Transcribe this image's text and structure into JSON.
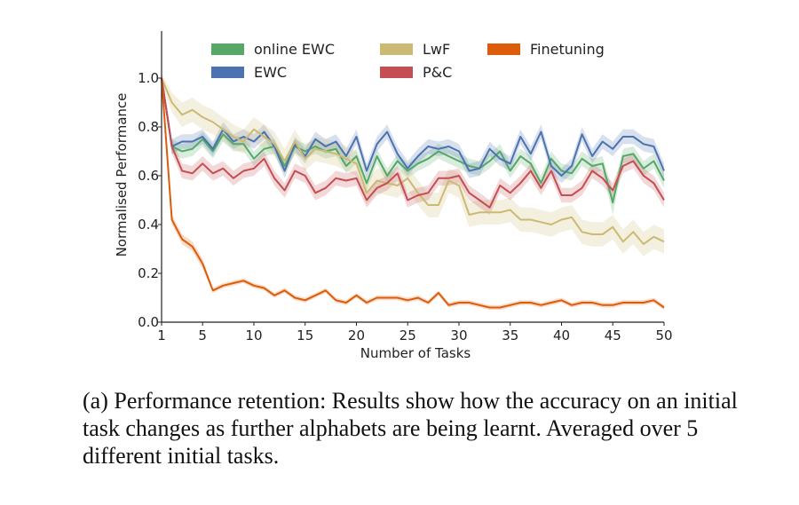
{
  "caption": "(a) Performance retention: Results show how the accuracy on an initial task changes as further alphabets are being learnt. Averaged over 5 different initial tasks.",
  "chart_data": {
    "type": "line",
    "title": "",
    "xlabel": "Number of Tasks",
    "ylabel": "Normalised Performance",
    "xlim": [
      1,
      50
    ],
    "ylim": [
      0.0,
      1.0
    ],
    "xticks": [
      1,
      5,
      10,
      15,
      20,
      25,
      30,
      35,
      40,
      45,
      50
    ],
    "yticks": [
      0.0,
      0.2,
      0.4,
      0.6,
      0.8,
      1.0
    ],
    "ytick_labels": [
      "0.0",
      "0.2",
      "0.4",
      "0.6",
      "0.8",
      "1.0"
    ],
    "grid": false,
    "legend_position": "top",
    "x": [
      1,
      2,
      3,
      4,
      5,
      6,
      7,
      8,
      9,
      10,
      11,
      12,
      13,
      14,
      15,
      16,
      17,
      18,
      19,
      20,
      21,
      22,
      23,
      24,
      25,
      26,
      27,
      28,
      29,
      30,
      31,
      32,
      33,
      34,
      35,
      36,
      37,
      38,
      39,
      40,
      41,
      42,
      43,
      44,
      45,
      46,
      47,
      48,
      49,
      50
    ],
    "series": [
      {
        "name": "online EWC",
        "color": "#55a868",
        "values": [
          1.0,
          0.72,
          0.7,
          0.71,
          0.75,
          0.7,
          0.77,
          0.73,
          0.73,
          0.67,
          0.71,
          0.72,
          0.64,
          0.72,
          0.7,
          0.72,
          0.7,
          0.71,
          0.64,
          0.68,
          0.57,
          0.68,
          0.6,
          0.66,
          0.62,
          0.65,
          0.67,
          0.7,
          0.68,
          0.66,
          0.64,
          0.63,
          0.66,
          0.7,
          0.62,
          0.68,
          0.65,
          0.57,
          0.67,
          0.62,
          0.61,
          0.67,
          0.64,
          0.65,
          0.49,
          0.68,
          0.69,
          0.63,
          0.66,
          0.58
        ],
        "band": [
          0.02,
          0.03,
          0.03,
          0.03,
          0.03,
          0.03,
          0.03,
          0.03,
          0.03,
          0.03,
          0.03,
          0.03,
          0.03,
          0.03,
          0.03,
          0.03,
          0.03,
          0.03,
          0.03,
          0.03,
          0.03,
          0.03,
          0.03,
          0.03,
          0.03,
          0.03,
          0.03,
          0.03,
          0.03,
          0.03,
          0.03,
          0.03,
          0.03,
          0.03,
          0.03,
          0.03,
          0.03,
          0.03,
          0.03,
          0.03,
          0.03,
          0.03,
          0.03,
          0.03,
          0.05,
          0.03,
          0.03,
          0.03,
          0.03,
          0.03
        ]
      },
      {
        "name": "EWC",
        "color": "#4c72b0",
        "values": [
          1.0,
          0.72,
          0.74,
          0.74,
          0.76,
          0.71,
          0.79,
          0.74,
          0.76,
          0.74,
          0.78,
          0.72,
          0.62,
          0.73,
          0.68,
          0.75,
          0.72,
          0.74,
          0.68,
          0.76,
          0.62,
          0.73,
          0.78,
          0.69,
          0.63,
          0.68,
          0.72,
          0.71,
          0.72,
          0.7,
          0.62,
          0.63,
          0.71,
          0.67,
          0.65,
          0.76,
          0.69,
          0.78,
          0.64,
          0.6,
          0.64,
          0.77,
          0.68,
          0.74,
          0.71,
          0.76,
          0.76,
          0.73,
          0.72,
          0.62
        ],
        "band": [
          0.02,
          0.03,
          0.03,
          0.03,
          0.03,
          0.03,
          0.03,
          0.03,
          0.03,
          0.03,
          0.03,
          0.03,
          0.03,
          0.03,
          0.03,
          0.03,
          0.03,
          0.03,
          0.03,
          0.03,
          0.03,
          0.03,
          0.03,
          0.03,
          0.03,
          0.03,
          0.03,
          0.03,
          0.03,
          0.03,
          0.03,
          0.03,
          0.03,
          0.03,
          0.03,
          0.03,
          0.03,
          0.03,
          0.03,
          0.03,
          0.03,
          0.03,
          0.03,
          0.03,
          0.03,
          0.03,
          0.03,
          0.03,
          0.03,
          0.03
        ]
      },
      {
        "name": "LwF",
        "color": "#ccb974",
        "values": [
          1.0,
          0.9,
          0.85,
          0.87,
          0.84,
          0.82,
          0.79,
          0.76,
          0.74,
          0.79,
          0.76,
          0.73,
          0.66,
          0.74,
          0.67,
          0.71,
          0.7,
          0.69,
          0.67,
          0.65,
          0.53,
          0.58,
          0.57,
          0.56,
          0.59,
          0.53,
          0.48,
          0.48,
          0.58,
          0.56,
          0.44,
          0.45,
          0.45,
          0.45,
          0.46,
          0.42,
          0.42,
          0.41,
          0.4,
          0.42,
          0.43,
          0.37,
          0.36,
          0.36,
          0.39,
          0.33,
          0.37,
          0.32,
          0.35,
          0.33
        ],
        "band": [
          0.02,
          0.04,
          0.05,
          0.05,
          0.05,
          0.05,
          0.05,
          0.05,
          0.05,
          0.05,
          0.05,
          0.05,
          0.05,
          0.05,
          0.05,
          0.05,
          0.05,
          0.05,
          0.05,
          0.05,
          0.05,
          0.05,
          0.05,
          0.05,
          0.05,
          0.05,
          0.05,
          0.05,
          0.05,
          0.05,
          0.05,
          0.05,
          0.05,
          0.05,
          0.05,
          0.05,
          0.05,
          0.05,
          0.05,
          0.05,
          0.05,
          0.05,
          0.05,
          0.05,
          0.05,
          0.05,
          0.05,
          0.05,
          0.05,
          0.05
        ]
      },
      {
        "name": "P&C",
        "color": "#c44e52",
        "values": [
          1.0,
          0.72,
          0.62,
          0.61,
          0.65,
          0.61,
          0.63,
          0.59,
          0.62,
          0.63,
          0.67,
          0.59,
          0.54,
          0.62,
          0.6,
          0.53,
          0.55,
          0.59,
          0.58,
          0.59,
          0.5,
          0.55,
          0.57,
          0.61,
          0.5,
          0.52,
          0.53,
          0.59,
          0.59,
          0.6,
          0.53,
          0.5,
          0.47,
          0.56,
          0.53,
          0.57,
          0.62,
          0.55,
          0.62,
          0.52,
          0.52,
          0.55,
          0.62,
          0.59,
          0.54,
          0.64,
          0.66,
          0.6,
          0.57,
          0.5
        ],
        "band": [
          0.02,
          0.03,
          0.03,
          0.03,
          0.03,
          0.03,
          0.03,
          0.03,
          0.03,
          0.03,
          0.03,
          0.03,
          0.03,
          0.03,
          0.03,
          0.03,
          0.03,
          0.03,
          0.03,
          0.03,
          0.03,
          0.03,
          0.03,
          0.03,
          0.03,
          0.03,
          0.03,
          0.03,
          0.03,
          0.03,
          0.03,
          0.03,
          0.03,
          0.03,
          0.03,
          0.03,
          0.03,
          0.03,
          0.03,
          0.03,
          0.03,
          0.03,
          0.03,
          0.03,
          0.03,
          0.03,
          0.03,
          0.03,
          0.03,
          0.03
        ]
      },
      {
        "name": "Finetuning",
        "color": "#dd5c0a",
        "values": [
          1.0,
          0.42,
          0.34,
          0.31,
          0.24,
          0.13,
          0.15,
          0.16,
          0.17,
          0.15,
          0.14,
          0.11,
          0.13,
          0.1,
          0.09,
          0.11,
          0.13,
          0.09,
          0.08,
          0.11,
          0.08,
          0.1,
          0.1,
          0.1,
          0.09,
          0.1,
          0.08,
          0.12,
          0.07,
          0.08,
          0.08,
          0.07,
          0.06,
          0.06,
          0.07,
          0.08,
          0.08,
          0.07,
          0.08,
          0.09,
          0.07,
          0.08,
          0.08,
          0.07,
          0.07,
          0.08,
          0.08,
          0.08,
          0.09,
          0.06
        ],
        "band": [
          0.01,
          0.02,
          0.02,
          0.02,
          0.02,
          0.01,
          0.01,
          0.01,
          0.01,
          0.01,
          0.01,
          0.01,
          0.01,
          0.01,
          0.01,
          0.01,
          0.01,
          0.01,
          0.01,
          0.01,
          0.01,
          0.01,
          0.01,
          0.01,
          0.01,
          0.01,
          0.01,
          0.01,
          0.01,
          0.01,
          0.01,
          0.01,
          0.01,
          0.01,
          0.01,
          0.01,
          0.01,
          0.01,
          0.01,
          0.01,
          0.01,
          0.01,
          0.01,
          0.01,
          0.01,
          0.01,
          0.01,
          0.01,
          0.01,
          0.01
        ]
      }
    ]
  }
}
